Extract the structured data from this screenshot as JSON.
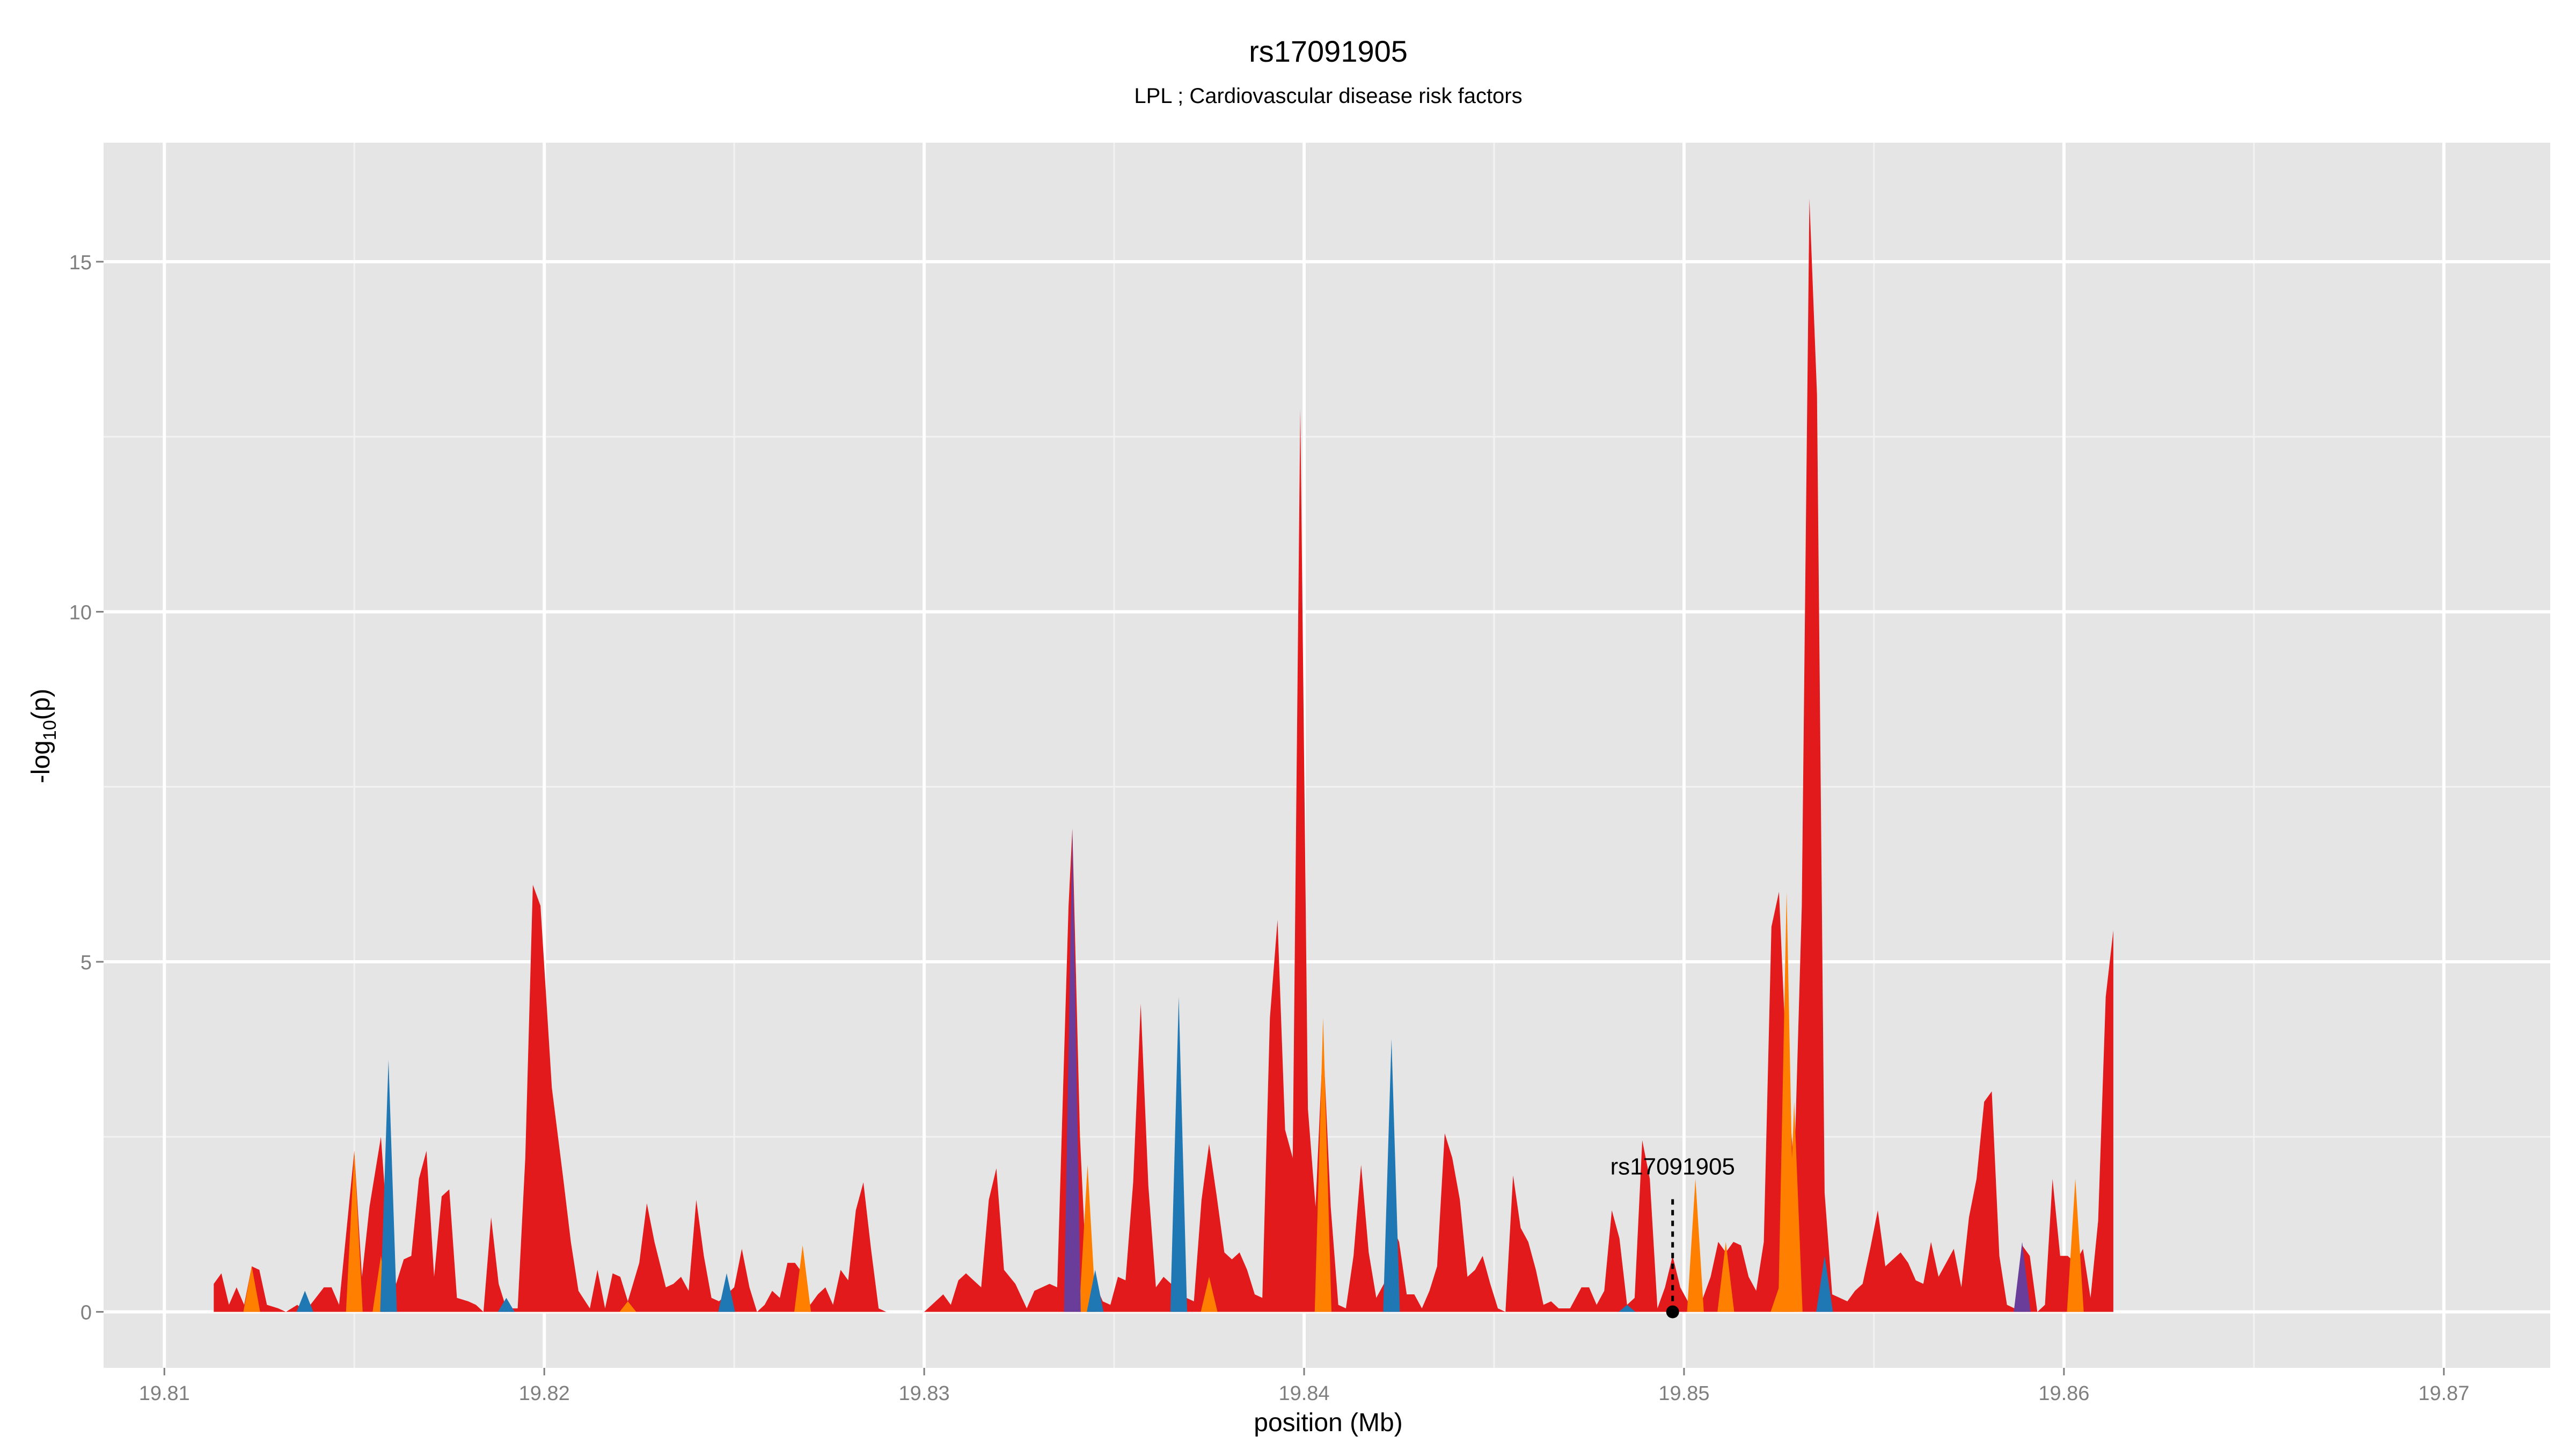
{
  "chart_data": {
    "type": "area",
    "title": "rs17091905",
    "subtitle": "LPL ; Cardiovascular disease risk factors",
    "xlabel": "position (Mb)",
    "ylabel_prefix": "-log",
    "ylabel_sub": "10",
    "ylabel_suffix": "(p)",
    "xlim": [
      19.8084,
      19.8728
    ],
    "ylim": [
      -0.8,
      16.7
    ],
    "x_ticks": [
      19.81,
      19.82,
      19.83,
      19.84,
      19.85,
      19.86,
      19.87
    ],
    "x_tick_labels": [
      "19.81",
      "19.82",
      "19.83",
      "19.84",
      "19.85",
      "19.86",
      "19.87"
    ],
    "y_ticks": [
      0,
      5,
      10,
      15
    ],
    "y_tick_labels": [
      "0",
      "5",
      "10",
      "15"
    ],
    "grid": true,
    "colors": {
      "panel": "#e5e5e5",
      "grid_major": "#ffffff",
      "grid_minor": "#f2f2f2",
      "red": "#e31a1c",
      "orange": "#ff7f00",
      "blue": "#1f78b4",
      "purple": "#6a3d9a",
      "text": "#000000",
      "tick_text": "#7f7f7f"
    },
    "annotation": {
      "label": "rs17091905",
      "x": 19.8497,
      "y": 0,
      "label_y": 1.9
    },
    "series": [
      {
        "color": "red",
        "points": [
          [
            19.8113,
            0.4
          ],
          [
            19.8115,
            0.55
          ],
          [
            19.8117,
            0.1
          ],
          [
            19.8119,
            0.35
          ],
          [
            19.8121,
            0.1
          ],
          [
            19.8123,
            0.65
          ],
          [
            19.8125,
            0.6
          ],
          [
            19.8127,
            0.1
          ],
          [
            19.813,
            0.05
          ],
          [
            19.8132,
            0.0
          ],
          [
            19.8135,
            0.1
          ],
          [
            19.8137,
            0.0
          ],
          [
            19.8142,
            0.35
          ],
          [
            19.8144,
            0.35
          ],
          [
            19.8146,
            0.1
          ],
          [
            19.8148,
            1.2
          ],
          [
            19.815,
            2.3
          ],
          [
            19.8152,
            0.5
          ],
          [
            19.8154,
            1.5
          ],
          [
            19.8157,
            2.5
          ],
          [
            19.8159,
            1.0
          ],
          [
            19.8161,
            0.4
          ],
          [
            19.8163,
            0.75
          ],
          [
            19.8165,
            0.8
          ],
          [
            19.8167,
            1.9
          ],
          [
            19.8169,
            2.3
          ],
          [
            19.8171,
            0.5
          ],
          [
            19.8173,
            1.65
          ],
          [
            19.8175,
            1.75
          ],
          [
            19.8177,
            0.2
          ],
          [
            19.818,
            0.15
          ],
          [
            19.8182,
            0.1
          ],
          [
            19.8184,
            0.0
          ],
          [
            19.8186,
            1.35
          ],
          [
            19.8188,
            0.4
          ],
          [
            19.819,
            0.05
          ],
          [
            19.8193,
            0.05
          ],
          [
            19.8195,
            2.2
          ],
          [
            19.8197,
            6.1
          ],
          [
            19.8199,
            5.8
          ],
          [
            19.8202,
            3.2
          ],
          [
            19.8205,
            1.9
          ],
          [
            19.8207,
            1.0
          ],
          [
            19.8209,
            0.3
          ],
          [
            19.8212,
            0.05
          ],
          [
            19.8214,
            0.6
          ],
          [
            19.8216,
            0.05
          ],
          [
            19.8218,
            0.55
          ],
          [
            19.822,
            0.5
          ],
          [
            19.8222,
            0.15
          ],
          [
            19.8225,
            0.7
          ],
          [
            19.8227,
            1.55
          ],
          [
            19.8229,
            1.0
          ],
          [
            19.8232,
            0.35
          ],
          [
            19.8234,
            0.4
          ],
          [
            19.8236,
            0.5
          ],
          [
            19.8238,
            0.3
          ],
          [
            19.824,
            1.6
          ],
          [
            19.8242,
            0.8
          ],
          [
            19.8244,
            0.2
          ],
          [
            19.8246,
            0.15
          ],
          [
            19.825,
            0.35
          ],
          [
            19.8252,
            0.9
          ],
          [
            19.8254,
            0.35
          ],
          [
            19.8256,
            0.0
          ],
          [
            19.8258,
            0.1
          ],
          [
            19.826,
            0.3
          ],
          [
            19.8262,
            0.2
          ],
          [
            19.8264,
            0.7
          ],
          [
            19.8266,
            0.7
          ],
          [
            19.8268,
            0.55
          ],
          [
            19.827,
            0.1
          ],
          [
            19.8272,
            0.25
          ],
          [
            19.8274,
            0.35
          ],
          [
            19.8276,
            0.1
          ],
          [
            19.8278,
            0.6
          ],
          [
            19.828,
            0.45
          ],
          [
            19.8282,
            1.45
          ],
          [
            19.8284,
            1.85
          ],
          [
            19.8286,
            0.9
          ],
          [
            19.8288,
            0.05
          ],
          [
            19.829,
            0.0
          ],
          [
            19.8295,
            0.0
          ],
          [
            19.83,
            0.0
          ],
          [
            19.8305,
            0.25
          ],
          [
            19.8307,
            0.1
          ],
          [
            19.8309,
            0.45
          ],
          [
            19.8311,
            0.55
          ],
          [
            19.8313,
            0.45
          ],
          [
            19.8315,
            0.35
          ],
          [
            19.8317,
            1.6
          ],
          [
            19.8319,
            2.05
          ],
          [
            19.8321,
            0.6
          ],
          [
            19.8324,
            0.4
          ],
          [
            19.8327,
            0.05
          ],
          [
            19.8329,
            0.3
          ],
          [
            19.8331,
            0.35
          ],
          [
            19.8333,
            0.4
          ],
          [
            19.8335,
            0.35
          ],
          [
            19.8338,
            5.8
          ],
          [
            19.8339,
            6.9
          ],
          [
            19.8341,
            2.5
          ],
          [
            19.8343,
            0.2
          ],
          [
            19.8345,
            0.4
          ],
          [
            19.8347,
            0.15
          ],
          [
            19.8349,
            0.1
          ],
          [
            19.8351,
            0.5
          ],
          [
            19.8353,
            0.45
          ],
          [
            19.8355,
            1.85
          ],
          [
            19.8357,
            4.4
          ],
          [
            19.8359,
            1.8
          ],
          [
            19.8361,
            0.35
          ],
          [
            19.8363,
            0.5
          ],
          [
            19.8365,
            0.4
          ],
          [
            19.8367,
            0.15
          ],
          [
            19.8369,
            0.2
          ],
          [
            19.8371,
            0.15
          ],
          [
            19.8373,
            1.6
          ],
          [
            19.8375,
            2.4
          ],
          [
            19.8377,
            1.65
          ],
          [
            19.8379,
            0.85
          ],
          [
            19.8381,
            0.75
          ],
          [
            19.8383,
            0.85
          ],
          [
            19.8385,
            0.6
          ],
          [
            19.8387,
            0.25
          ],
          [
            19.8389,
            0.2
          ],
          [
            19.8391,
            4.2
          ],
          [
            19.8393,
            5.6
          ],
          [
            19.8395,
            2.6
          ],
          [
            19.8397,
            2.2
          ],
          [
            19.8399,
            12.9
          ],
          [
            19.8401,
            2.9
          ],
          [
            19.8403,
            1.5
          ],
          [
            19.8405,
            3.9
          ],
          [
            19.8407,
            1.5
          ],
          [
            19.8409,
            0.1
          ],
          [
            19.8411,
            0.05
          ],
          [
            19.8413,
            0.8
          ],
          [
            19.8415,
            2.1
          ],
          [
            19.8417,
            0.85
          ],
          [
            19.8419,
            0.2
          ],
          [
            19.8421,
            0.4
          ],
          [
            19.8423,
            1.25
          ],
          [
            19.8425,
            1.0
          ],
          [
            19.8427,
            0.25
          ],
          [
            19.8429,
            0.25
          ],
          [
            19.8431,
            0.05
          ],
          [
            19.8433,
            0.3
          ],
          [
            19.8435,
            0.65
          ],
          [
            19.8437,
            2.55
          ],
          [
            19.8439,
            2.2
          ],
          [
            19.8441,
            1.6
          ],
          [
            19.8443,
            0.5
          ],
          [
            19.8445,
            0.6
          ],
          [
            19.8447,
            0.8
          ],
          [
            19.8449,
            0.4
          ],
          [
            19.8451,
            0.05
          ],
          [
            19.8453,
            0.0
          ],
          [
            19.8455,
            1.95
          ],
          [
            19.8457,
            1.2
          ],
          [
            19.8459,
            1.0
          ],
          [
            19.8461,
            0.6
          ],
          [
            19.8463,
            0.1
          ],
          [
            19.8465,
            0.15
          ],
          [
            19.8467,
            0.05
          ],
          [
            19.847,
            0.05
          ],
          [
            19.8473,
            0.35
          ],
          [
            19.8475,
            0.35
          ],
          [
            19.8477,
            0.1
          ],
          [
            19.8479,
            0.3
          ],
          [
            19.8481,
            1.45
          ],
          [
            19.8483,
            1.05
          ],
          [
            19.8485,
            0.1
          ],
          [
            19.8487,
            0.2
          ],
          [
            19.8489,
            2.45
          ],
          [
            19.8491,
            1.9
          ],
          [
            19.8493,
            0.05
          ],
          [
            19.8495,
            0.35
          ],
          [
            19.8497,
            0.8
          ],
          [
            19.8499,
            0.35
          ],
          [
            19.8501,
            0.15
          ],
          [
            19.8503,
            0.2
          ],
          [
            19.8505,
            0.2
          ],
          [
            19.8507,
            0.5
          ],
          [
            19.8509,
            1.0
          ],
          [
            19.8511,
            0.85
          ],
          [
            19.8513,
            1.0
          ],
          [
            19.8515,
            0.95
          ],
          [
            19.8517,
            0.5
          ],
          [
            19.8519,
            0.3
          ],
          [
            19.8521,
            1.0
          ],
          [
            19.8523,
            5.5
          ],
          [
            19.8525,
            6.0
          ],
          [
            19.8527,
            3.5
          ],
          [
            19.8529,
            2.0
          ],
          [
            19.8531,
            5.8
          ],
          [
            19.8533,
            15.9
          ],
          [
            19.8535,
            13.1
          ],
          [
            19.8537,
            1.7
          ],
          [
            19.8539,
            0.25
          ],
          [
            19.8541,
            0.2
          ],
          [
            19.8543,
            0.15
          ],
          [
            19.8545,
            0.3
          ],
          [
            19.8547,
            0.4
          ],
          [
            19.8549,
            0.9
          ],
          [
            19.8551,
            1.45
          ],
          [
            19.8553,
            0.65
          ],
          [
            19.8555,
            0.75
          ],
          [
            19.8557,
            0.85
          ],
          [
            19.8559,
            0.7
          ],
          [
            19.8561,
            0.45
          ],
          [
            19.8563,
            0.4
          ],
          [
            19.8565,
            1.0
          ],
          [
            19.8567,
            0.5
          ],
          [
            19.8569,
            0.7
          ],
          [
            19.8571,
            0.9
          ],
          [
            19.8573,
            0.35
          ],
          [
            19.8575,
            1.35
          ],
          [
            19.8577,
            1.9
          ],
          [
            19.8579,
            3.0
          ],
          [
            19.8581,
            3.15
          ],
          [
            19.8583,
            0.8
          ],
          [
            19.8585,
            0.1
          ],
          [
            19.8587,
            0.05
          ],
          [
            19.8589,
            0.95
          ],
          [
            19.8591,
            0.8
          ],
          [
            19.8593,
            0.0
          ],
          [
            19.8595,
            0.1
          ],
          [
            19.8597,
            1.9
          ],
          [
            19.8599,
            0.8
          ],
          [
            19.8601,
            0.8
          ],
          [
            19.8603,
            0.7
          ],
          [
            19.8605,
            0.9
          ],
          [
            19.8607,
            0.2
          ],
          [
            19.8609,
            1.3
          ],
          [
            19.8611,
            4.5
          ],
          [
            19.8613,
            5.45
          ]
        ]
      },
      {
        "color": "orange",
        "points": [
          [
            19.8123,
            0.65
          ],
          [
            19.815,
            2.3
          ],
          [
            19.8157,
            0.8
          ],
          [
            19.8222,
            0.15
          ],
          [
            19.8268,
            0.95
          ],
          [
            19.8343,
            2.1
          ],
          [
            19.8375,
            0.5
          ],
          [
            19.8405,
            4.2
          ],
          [
            19.8503,
            1.9
          ],
          [
            19.8511,
            1.0
          ],
          [
            19.8525,
            0.35
          ],
          [
            19.8527,
            6.0
          ],
          [
            19.8529,
            3.0
          ],
          [
            19.8603,
            1.9
          ]
        ]
      },
      {
        "color": "blue",
        "points": [
          [
            19.8137,
            0.3
          ],
          [
            19.8159,
            3.6
          ],
          [
            19.819,
            0.2
          ],
          [
            19.8248,
            0.55
          ],
          [
            19.8345,
            0.6
          ],
          [
            19.8367,
            4.5
          ],
          [
            19.8423,
            3.9
          ],
          [
            19.8485,
            0.1
          ],
          [
            19.8537,
            0.8
          ]
        ]
      },
      {
        "color": "purple",
        "points": [
          [
            19.8339,
            6.9
          ],
          [
            19.8589,
            1.0
          ]
        ]
      }
    ]
  }
}
